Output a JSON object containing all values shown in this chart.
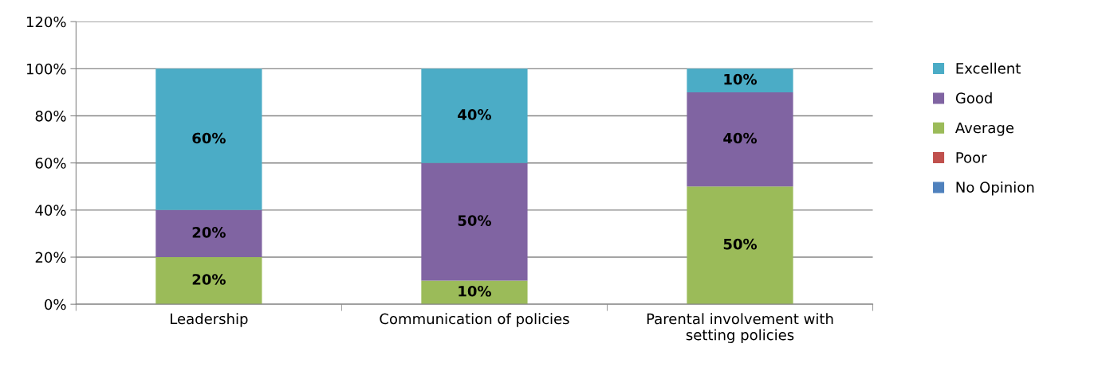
{
  "chart_data": {
    "type": "bar",
    "stacked": true,
    "categories": [
      "Leadership",
      "Communication of policies",
      "Parental involvement with\nsetting policies"
    ],
    "series": [
      {
        "name": "No Opinion",
        "color": "#4f81bd",
        "values": [
          0,
          0,
          0
        ],
        "value_labels": [
          null,
          null,
          null
        ]
      },
      {
        "name": "Poor",
        "color": "#c0504d",
        "values": [
          0,
          0,
          0
        ],
        "value_labels": [
          null,
          null,
          null
        ]
      },
      {
        "name": "Average",
        "color": "#9bbb59",
        "values": [
          20,
          10,
          50
        ],
        "value_labels": [
          "20%",
          "10%",
          "50%"
        ]
      },
      {
        "name": "Good",
        "color": "#8064a2",
        "values": [
          20,
          50,
          40
        ],
        "value_labels": [
          "20%",
          "50%",
          "40%"
        ]
      },
      {
        "name": "Excellent",
        "color": "#4bacc6",
        "values": [
          60,
          40,
          10
        ],
        "value_labels": [
          "60%",
          "40%",
          "10%"
        ]
      }
    ],
    "ylim": [
      0,
      120
    ],
    "yticks": [
      {
        "value": 0,
        "label": "0%"
      },
      {
        "value": 20,
        "label": "20%"
      },
      {
        "value": 40,
        "label": "40%"
      },
      {
        "value": 60,
        "label": "60%"
      },
      {
        "value": 80,
        "label": "80%"
      },
      {
        "value": 100,
        "label": "100%"
      },
      {
        "value": 120,
        "label": "120%"
      }
    ],
    "grid": "y",
    "legend": "right"
  }
}
